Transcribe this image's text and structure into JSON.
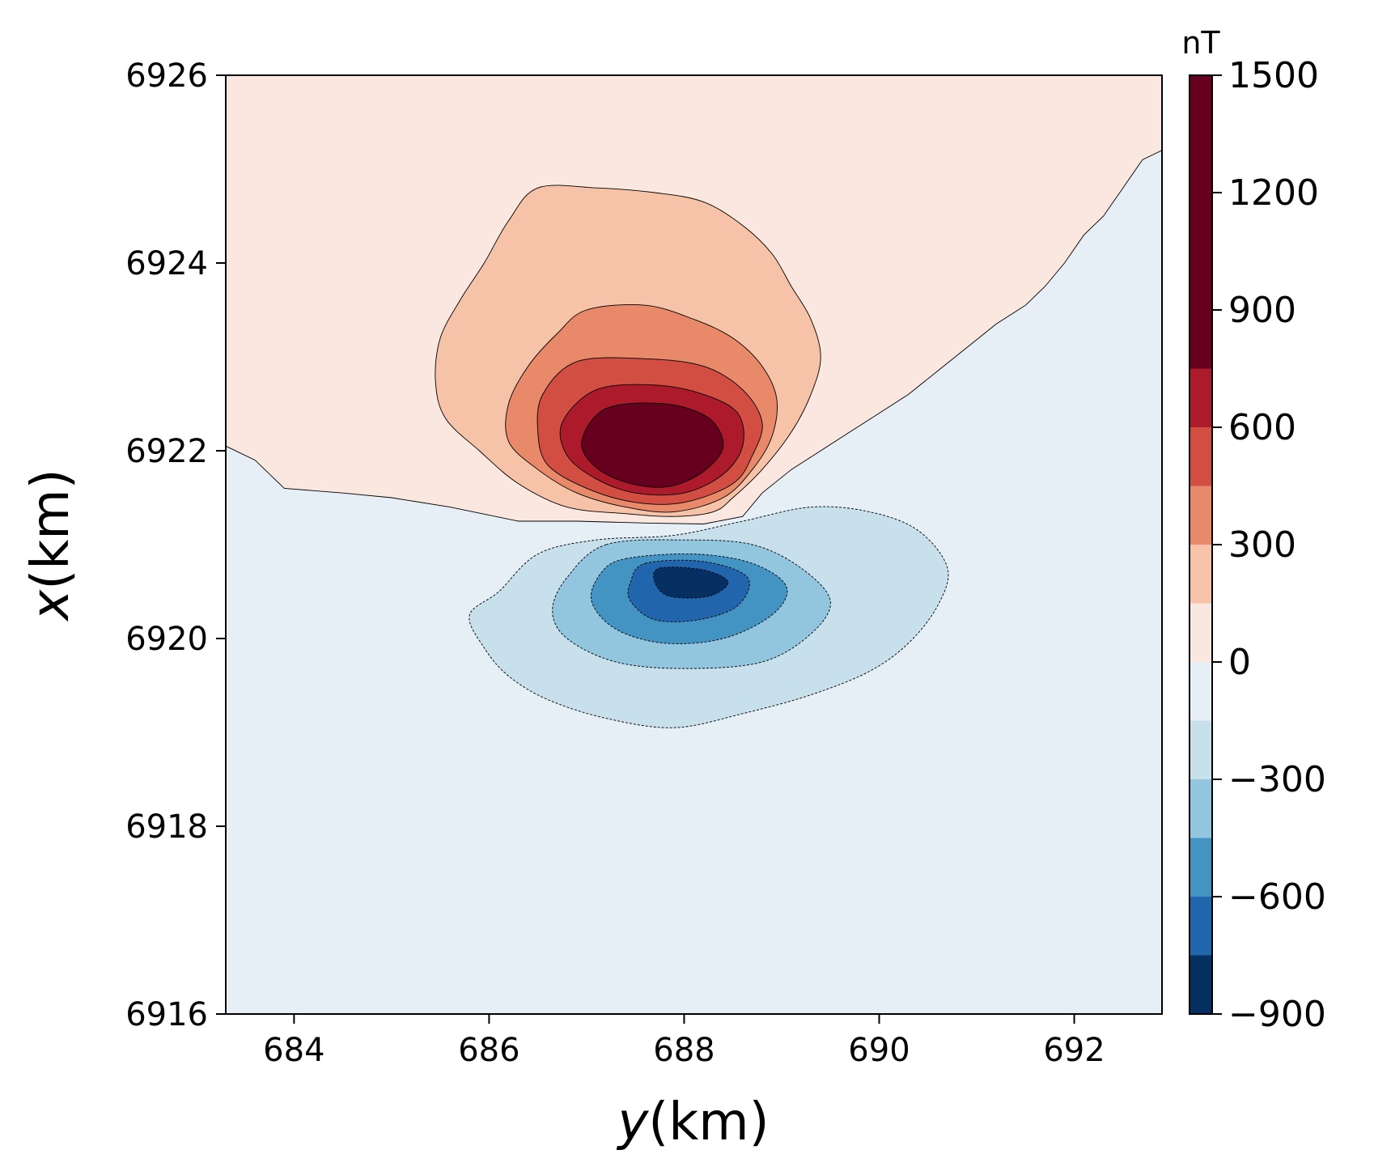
{
  "chart_data": {
    "type": "contour",
    "xlabel_var": "y",
    "xlabel_unit": "(km)",
    "ylabel_var": "x",
    "ylabel_unit": "(km)",
    "xlim": [
      683.3,
      692.9
    ],
    "ylim": [
      6916,
      6926
    ],
    "x_ticks": [
      684,
      686,
      688,
      690,
      692
    ],
    "x_tick_labels": [
      "684",
      "686",
      "688",
      "690",
      "692"
    ],
    "y_ticks": [
      6916,
      6918,
      6920,
      6922,
      6924,
      6926
    ],
    "y_tick_labels": [
      "6916",
      "6918",
      "6920",
      "6922",
      "6924",
      "6926"
    ],
    "colorbar": {
      "unit": "nT",
      "range": [
        -900,
        1500
      ],
      "ticks": [
        -900,
        -600,
        -300,
        0,
        300,
        600,
        900,
        1200,
        1500
      ],
      "tick_labels": [
        "−900",
        "−600",
        "−300",
        "0",
        "300",
        "600",
        "900",
        "1200",
        "1500"
      ],
      "levels": [
        -900,
        -750,
        -600,
        -450,
        -300,
        -150,
        0,
        150,
        300,
        450,
        600,
        750,
        1500
      ],
      "colors": [
        "#053061",
        "#2166ac",
        "#4393c3",
        "#92c5de",
        "#c8dfec",
        "#e6eff5",
        "#fae8e0",
        "#f7c3a8",
        "#e8896a",
        "#d24e42",
        "#ac1a2b",
        "#67001f"
      ]
    },
    "anomaly": {
      "positive_peak": {
        "y": 687.9,
        "x": 6921.9,
        "value": 1500
      },
      "negative_peak": {
        "y": 688.1,
        "x": 6920.7,
        "value": -900
      }
    },
    "contours": [
      {
        "level": 0,
        "fill": "#fae8e0",
        "points": [
          [
            683.3,
            6926
          ],
          [
            692.9,
            6926
          ],
          [
            692.9,
            6925.2
          ],
          [
            692.7,
            6925.1
          ],
          [
            692.5,
            6924.8
          ],
          [
            692.3,
            6924.5
          ],
          [
            692.1,
            6924.3
          ],
          [
            691.9,
            6924.0
          ],
          [
            691.7,
            6923.75
          ],
          [
            691.5,
            6923.55
          ],
          [
            691.2,
            6923.35
          ],
          [
            690.9,
            6923.1
          ],
          [
            690.6,
            6922.85
          ],
          [
            690.3,
            6922.6
          ],
          [
            690.0,
            6922.4
          ],
          [
            689.7,
            6922.2
          ],
          [
            689.4,
            6922.0
          ],
          [
            689.1,
            6921.8
          ],
          [
            688.8,
            6921.55
          ],
          [
            688.6,
            6921.3
          ],
          [
            688.2,
            6921.22
          ],
          [
            687.6,
            6921.23
          ],
          [
            686.9,
            6921.25
          ],
          [
            686.3,
            6921.25
          ],
          [
            685.6,
            6921.4
          ],
          [
            685.0,
            6921.5
          ],
          [
            684.5,
            6921.55
          ],
          [
            683.9,
            6921.6
          ],
          [
            683.6,
            6921.9
          ],
          [
            683.3,
            6922.05
          ]
        ]
      },
      {
        "level": 150,
        "fill": "#f7c3a8",
        "points": [
          [
            686.5,
            6924.8
          ],
          [
            687.1,
            6924.8
          ],
          [
            687.7,
            6924.75
          ],
          [
            688.2,
            6924.65
          ],
          [
            688.6,
            6924.4
          ],
          [
            688.9,
            6924.1
          ],
          [
            689.1,
            6923.75
          ],
          [
            689.3,
            6923.4
          ],
          [
            689.4,
            6923.0
          ],
          [
            689.3,
            6922.6
          ],
          [
            689.1,
            6922.2
          ],
          [
            688.8,
            6921.8
          ],
          [
            688.5,
            6921.5
          ],
          [
            688.3,
            6921.35
          ],
          [
            687.9,
            6921.3
          ],
          [
            687.4,
            6921.33
          ],
          [
            686.8,
            6921.4
          ],
          [
            686.3,
            6921.65
          ],
          [
            685.9,
            6922.0
          ],
          [
            685.55,
            6922.35
          ],
          [
            685.45,
            6922.75
          ],
          [
            685.5,
            6923.2
          ],
          [
            685.7,
            6923.6
          ],
          [
            685.95,
            6924.0
          ],
          [
            686.2,
            6924.45
          ]
        ]
      },
      {
        "level": 300,
        "fill": "#e8896a",
        "points": [
          [
            687.0,
            6923.5
          ],
          [
            687.6,
            6923.55
          ],
          [
            688.1,
            6923.4
          ],
          [
            688.5,
            6923.2
          ],
          [
            688.8,
            6922.9
          ],
          [
            688.95,
            6922.55
          ],
          [
            688.9,
            6922.15
          ],
          [
            688.7,
            6921.8
          ],
          [
            688.4,
            6921.5
          ],
          [
            687.9,
            6921.35
          ],
          [
            687.4,
            6921.4
          ],
          [
            686.9,
            6921.55
          ],
          [
            686.5,
            6921.8
          ],
          [
            686.2,
            6922.1
          ],
          [
            686.2,
            6922.5
          ],
          [
            686.4,
            6922.9
          ],
          [
            686.7,
            6923.25
          ]
        ]
      },
      {
        "level": 450,
        "fill": "#d24e42",
        "points": [
          [
            686.9,
            6922.95
          ],
          [
            687.6,
            6922.98
          ],
          [
            688.2,
            6922.9
          ],
          [
            688.6,
            6922.65
          ],
          [
            688.8,
            6922.3
          ],
          [
            688.7,
            6921.95
          ],
          [
            688.5,
            6921.65
          ],
          [
            688.0,
            6921.45
          ],
          [
            687.5,
            6921.45
          ],
          [
            687.0,
            6921.6
          ],
          [
            686.6,
            6921.85
          ],
          [
            686.5,
            6922.2
          ],
          [
            686.55,
            6922.6
          ]
        ]
      },
      {
        "level": 600,
        "fill": "#ac1a2b",
        "points": [
          [
            687.1,
            6922.65
          ],
          [
            687.7,
            6922.7
          ],
          [
            688.2,
            6922.6
          ],
          [
            688.55,
            6922.4
          ],
          [
            688.6,
            6922.05
          ],
          [
            688.4,
            6921.75
          ],
          [
            688.0,
            6921.55
          ],
          [
            687.5,
            6921.55
          ],
          [
            687.1,
            6921.7
          ],
          [
            686.8,
            6921.95
          ],
          [
            686.75,
            6922.3
          ]
        ]
      },
      {
        "level": 750,
        "fill": "#67001f",
        "points": [
          [
            687.2,
            6922.45
          ],
          [
            687.8,
            6922.5
          ],
          [
            688.25,
            6922.35
          ],
          [
            688.4,
            6922.05
          ],
          [
            688.2,
            6921.78
          ],
          [
            687.85,
            6921.62
          ],
          [
            687.45,
            6921.65
          ],
          [
            687.1,
            6921.82
          ],
          [
            686.95,
            6922.1
          ]
        ]
      },
      {
        "level": -150,
        "fill": "#c8dfec",
        "points": [
          [
            689.3,
            6921.4
          ],
          [
            689.9,
            6921.35
          ],
          [
            690.4,
            6921.15
          ],
          [
            690.7,
            6920.75
          ],
          [
            690.6,
            6920.35
          ],
          [
            690.3,
            6919.95
          ],
          [
            689.9,
            6919.65
          ],
          [
            689.3,
            6919.4
          ],
          [
            688.6,
            6919.2
          ],
          [
            687.9,
            6919.05
          ],
          [
            687.2,
            6919.15
          ],
          [
            686.6,
            6919.35
          ],
          [
            686.2,
            6919.6
          ],
          [
            685.95,
            6919.9
          ],
          [
            685.8,
            6920.25
          ],
          [
            686.1,
            6920.5
          ],
          [
            686.5,
            6920.9
          ],
          [
            687.1,
            6921.05
          ],
          [
            687.9,
            6921.1
          ],
          [
            688.6,
            6921.25
          ]
        ]
      },
      {
        "level": -300,
        "fill": "#92c5de",
        "points": [
          [
            687.2,
            6921.0
          ],
          [
            688.0,
            6921.05
          ],
          [
            688.7,
            6921.0
          ],
          [
            689.2,
            6920.75
          ],
          [
            689.5,
            6920.4
          ],
          [
            689.3,
            6920.05
          ],
          [
            688.8,
            6919.75
          ],
          [
            688.0,
            6919.68
          ],
          [
            687.3,
            6919.75
          ],
          [
            686.8,
            6920.0
          ],
          [
            686.65,
            6920.3
          ],
          [
            686.8,
            6920.65
          ]
        ]
      },
      {
        "level": -450,
        "fill": "#4393c3",
        "points": [
          [
            687.4,
            6920.85
          ],
          [
            688.1,
            6920.9
          ],
          [
            688.7,
            6920.8
          ],
          [
            689.05,
            6920.55
          ],
          [
            688.9,
            6920.25
          ],
          [
            688.4,
            6920.0
          ],
          [
            687.8,
            6919.95
          ],
          [
            687.3,
            6920.1
          ],
          [
            687.05,
            6920.4
          ],
          [
            687.15,
            6920.7
          ]
        ]
      },
      {
        "level": -600,
        "fill": "#2166ac",
        "points": [
          [
            687.6,
            6920.8
          ],
          [
            688.2,
            6920.82
          ],
          [
            688.65,
            6920.65
          ],
          [
            688.55,
            6920.35
          ],
          [
            688.15,
            6920.2
          ],
          [
            687.7,
            6920.2
          ],
          [
            687.45,
            6920.4
          ],
          [
            687.45,
            6920.6
          ]
        ]
      },
      {
        "level": -750,
        "fill": "#053061",
        "points": [
          [
            687.75,
            6920.75
          ],
          [
            688.2,
            6920.73
          ],
          [
            688.45,
            6920.6
          ],
          [
            688.25,
            6920.45
          ],
          [
            687.85,
            6920.45
          ],
          [
            687.7,
            6920.6
          ]
        ]
      }
    ]
  }
}
